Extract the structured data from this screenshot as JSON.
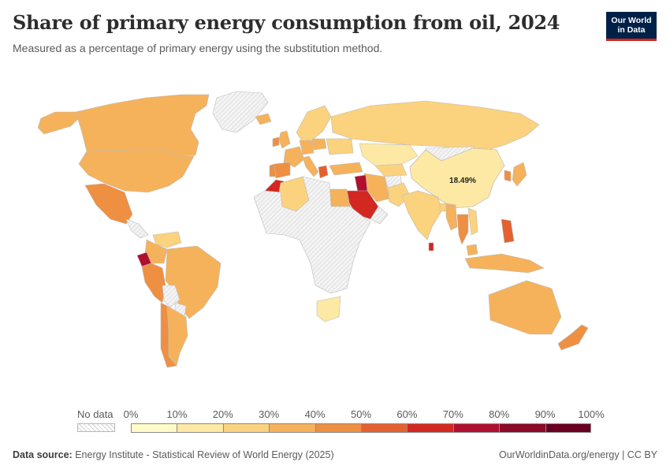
{
  "header": {
    "title": "Share of primary energy consumption from oil, 2024",
    "subtitle": "Measured as a percentage of primary energy using the substitution method."
  },
  "logo": {
    "line1": "Our World",
    "line2": "in Data"
  },
  "map": {
    "highlight": {
      "country": "China",
      "label": "18.49%",
      "value": 18.49
    },
    "regions": [
      {
        "name": "Canada",
        "value": 32
      },
      {
        "name": "Alaska",
        "value": 36
      },
      {
        "name": "Greenland",
        "value": null
      },
      {
        "name": "United States",
        "value": 37
      },
      {
        "name": "Mexico",
        "value": 45
      },
      {
        "name": "Central America",
        "value": null
      },
      {
        "name": "Colombia",
        "value": 32
      },
      {
        "name": "Venezuela",
        "value": 28
      },
      {
        "name": "Ecuador",
        "value": 78
      },
      {
        "name": "Peru",
        "value": 45
      },
      {
        "name": "Brazil",
        "value": 37
      },
      {
        "name": "Bolivia",
        "value": null
      },
      {
        "name": "Paraguay",
        "value": null
      },
      {
        "name": "Chile",
        "value": 44
      },
      {
        "name": "Argentina",
        "value": 38
      },
      {
        "name": "Iceland",
        "value": 38
      },
      {
        "name": "Scandinavia",
        "value": 25
      },
      {
        "name": "United Kingdom",
        "value": 38
      },
      {
        "name": "Ireland",
        "value": 46
      },
      {
        "name": "France",
        "value": 30
      },
      {
        "name": "Spain",
        "value": 42
      },
      {
        "name": "Portugal",
        "value": 48
      },
      {
        "name": "Germany",
        "value": 33
      },
      {
        "name": "Italy",
        "value": 37
      },
      {
        "name": "Poland",
        "value": 30
      },
      {
        "name": "Ukraine",
        "value": 20
      },
      {
        "name": "Greece",
        "value": 55
      },
      {
        "name": "Turkey",
        "value": 30
      },
      {
        "name": "Russia",
        "value": 22
      },
      {
        "name": "Kazakhstan",
        "value": 18
      },
      {
        "name": "Central Asia",
        "value": 20
      },
      {
        "name": "Mongolia",
        "value": null
      },
      {
        "name": "China",
        "value": 18.49
      },
      {
        "name": "Japan",
        "value": 38
      },
      {
        "name": "South Korea",
        "value": 40
      },
      {
        "name": "India",
        "value": 25
      },
      {
        "name": "Pakistan",
        "value": 28
      },
      {
        "name": "Afghanistan",
        "value": null
      },
      {
        "name": "Iran",
        "value": 35
      },
      {
        "name": "Iraq",
        "value": 78
      },
      {
        "name": "Saudi Arabia",
        "value": 63
      },
      {
        "name": "Arabian Peninsula",
        "value": null
      },
      {
        "name": "Egypt",
        "value": 38
      },
      {
        "name": "Morocco",
        "value": 62
      },
      {
        "name": "Algeria",
        "value": 28
      },
      {
        "name": "Africa other",
        "value": null
      },
      {
        "name": "South Africa",
        "value": 18
      },
      {
        "name": "Sri Lanka",
        "value": 62
      },
      {
        "name": "Bangladesh",
        "value": 28
      },
      {
        "name": "Myanmar",
        "value": 38
      },
      {
        "name": "Thailand",
        "value": 45
      },
      {
        "name": "Vietnam",
        "value": 26
      },
      {
        "name": "Philippines",
        "value": 50
      },
      {
        "name": "Malaysia",
        "value": 35
      },
      {
        "name": "Indonesia",
        "value": 32
      },
      {
        "name": "Australia",
        "value": 36
      },
      {
        "name": "New Zealand",
        "value": 42
      }
    ]
  },
  "legend": {
    "nodata_label": "No data",
    "tick_labels": [
      "0%",
      "10%",
      "20%",
      "30%",
      "40%",
      "50%",
      "60%",
      "70%",
      "80%",
      "90%",
      "100%"
    ],
    "bin_colors": [
      "#fffbc9",
      "#fde9a3",
      "#fbd27d",
      "#f5b25b",
      "#ee8f42",
      "#e5602f",
      "#d32722",
      "#b10f2f",
      "#8c0a28",
      "#6a0021"
    ],
    "nodata_color": "#e6e6e6"
  },
  "footer": {
    "source_label": "Data source:",
    "source_text": "Energy Institute - Statistical Review of World Energy (2025)",
    "right_text": "OurWorldinData.org/energy | CC BY"
  }
}
